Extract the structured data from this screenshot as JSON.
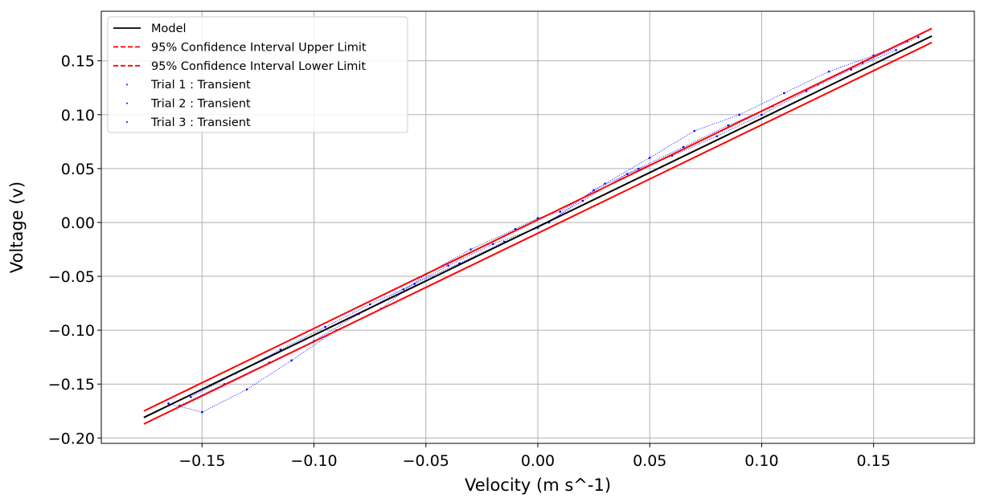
{
  "chart_data": {
    "type": "scatter",
    "title": "",
    "xlabel": "Velocity (m s^-1)",
    "ylabel": "Voltage (v)",
    "xlim": [
      -0.195,
      0.195
    ],
    "ylim": [
      -0.205,
      0.196
    ],
    "x_ticks": [
      -0.15,
      -0.1,
      -0.05,
      0.0,
      0.05,
      0.1,
      0.15
    ],
    "x_tick_labels": [
      "−0.15",
      "−0.10",
      "−0.05",
      "0.00",
      "0.05",
      "0.10",
      "0.15"
    ],
    "y_ticks": [
      -0.2,
      -0.15,
      -0.1,
      -0.05,
      0.0,
      0.05,
      0.1,
      0.15
    ],
    "y_tick_labels": [
      "−0.20",
      "−0.15",
      "−0.10",
      "−0.05",
      "0.00",
      "0.05",
      "0.10",
      "0.15"
    ],
    "grid": true,
    "legend_position": "top-left",
    "series": [
      {
        "name": "Model",
        "kind": "line",
        "color": "#000000",
        "dash": "solid",
        "x": [
          -0.176,
          0.176
        ],
        "y": [
          -0.181,
          0.173
        ]
      },
      {
        "name": "95% Confidence Interval Upper Limit",
        "kind": "line",
        "color": "#ff0000",
        "dash": "dashed",
        "x": [
          -0.176,
          0.176
        ],
        "y": [
          -0.175,
          0.18
        ]
      },
      {
        "name": "95% Confidence Interval Lower Limit",
        "kind": "line",
        "color": "#ff0000",
        "dash": "dashed",
        "x": [
          -0.176,
          0.176
        ],
        "y": [
          -0.187,
          0.167
        ]
      },
      {
        "name": "Trial 1 : Transient",
        "kind": "points",
        "color": "#0000ff",
        "x": [
          -0.165,
          -0.15,
          -0.13,
          -0.11,
          -0.09,
          -0.07,
          -0.05,
          -0.03,
          -0.01,
          0.0,
          0.01,
          0.03,
          0.05,
          0.07,
          0.09,
          0.11,
          0.13,
          0.15,
          0.165
        ],
        "y": [
          -0.168,
          -0.176,
          -0.155,
          -0.128,
          -0.1,
          -0.08,
          -0.048,
          -0.025,
          -0.006,
          0.004,
          0.01,
          0.036,
          0.06,
          0.085,
          0.1,
          0.12,
          0.14,
          0.155,
          0.168
        ]
      },
      {
        "name": "Trial 2 : Transient",
        "kind": "points",
        "color": "#0000ff",
        "x": [
          -0.16,
          -0.14,
          -0.12,
          -0.1,
          -0.08,
          -0.06,
          -0.04,
          -0.02,
          0.0,
          0.02,
          0.04,
          0.06,
          0.08,
          0.1,
          0.12,
          0.14,
          0.16
        ],
        "y": [
          -0.17,
          -0.15,
          -0.13,
          -0.11,
          -0.085,
          -0.062,
          -0.04,
          -0.02,
          -0.005,
          0.02,
          0.045,
          0.062,
          0.08,
          0.1,
          0.122,
          0.142,
          0.16
        ]
      },
      {
        "name": "Trial 3 : Transient",
        "kind": "points",
        "color": "#0000ff",
        "x": [
          -0.155,
          -0.135,
          -0.115,
          -0.095,
          -0.075,
          -0.055,
          -0.035,
          -0.015,
          0.005,
          0.025,
          0.045,
          0.065,
          0.085,
          0.105,
          0.125,
          0.145,
          0.17
        ],
        "y": [
          -0.162,
          -0.14,
          -0.118,
          -0.097,
          -0.076,
          -0.057,
          -0.038,
          -0.018,
          0.0,
          0.03,
          0.05,
          0.07,
          0.09,
          0.108,
          0.128,
          0.148,
          0.172
        ]
      }
    ]
  }
}
